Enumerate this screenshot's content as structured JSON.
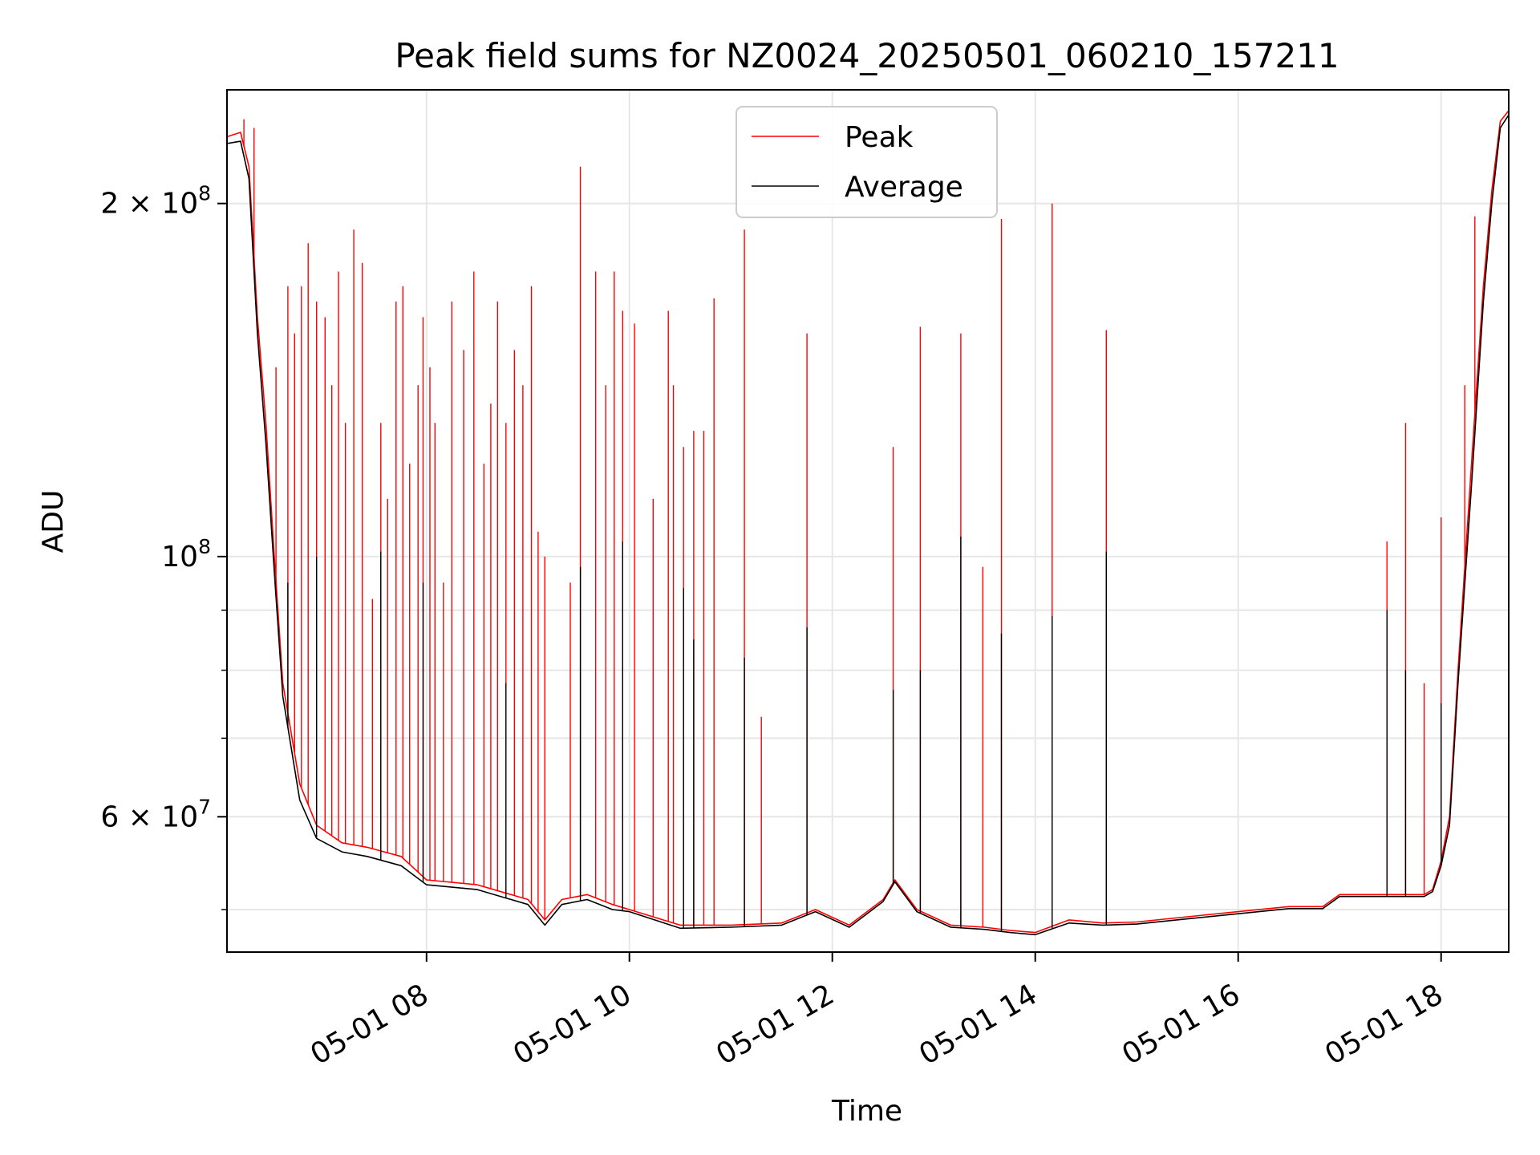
{
  "chart_data": {
    "type": "line",
    "title": "Peak field sums for NZ0024_20250501_060210_157211",
    "xlabel": "Time",
    "ylabel": "ADU",
    "y_scale": "log",
    "grid": true,
    "legend_position": "top-center",
    "xlim": [
      "2025-05-01 06:02",
      "2025-05-01 18:40"
    ],
    "ylim": [
      46000000,
      250000000
    ],
    "x_ticks": [
      {
        "t": "2025-05-01 08:00",
        "label": "05-01 08"
      },
      {
        "t": "2025-05-01 10:00",
        "label": "05-01 10"
      },
      {
        "t": "2025-05-01 12:00",
        "label": "05-01 12"
      },
      {
        "t": "2025-05-01 14:00",
        "label": "05-01 14"
      },
      {
        "t": "2025-05-01 16:00",
        "label": "05-01 16"
      },
      {
        "t": "2025-05-01 18:00",
        "label": "05-01 18"
      }
    ],
    "y_ticks": [
      {
        "value": 200000000,
        "base": "2 × 10",
        "exp": "8"
      },
      {
        "value": 100000000,
        "base": "10",
        "exp": "8"
      },
      {
        "value": 60000000,
        "base": "6 × 10",
        "exp": "7"
      }
    ],
    "y_minor_ticks": [
      50000000,
      70000000,
      80000000,
      90000000
    ],
    "series": [
      {
        "name": "Peak",
        "color": "#ff0000",
        "points": [
          [
            "2025-05-01 06:02",
            228000000
          ],
          [
            "2025-05-01 06:10",
            230000000
          ],
          [
            "2025-05-01 06:15",
            215000000
          ],
          [
            "2025-05-01 06:20",
            160000000
          ],
          [
            "2025-05-01 06:25",
            130000000
          ],
          [
            "2025-05-01 06:30",
            100000000
          ],
          [
            "2025-05-01 06:35",
            78000000
          ],
          [
            "2025-05-01 06:45",
            64000000
          ],
          [
            "2025-05-01 06:55",
            59000000
          ],
          [
            "2025-05-01 07:10",
            57000000
          ],
          [
            "2025-05-01 07:25",
            56500000
          ],
          [
            "2025-05-01 07:45",
            55500000
          ],
          [
            "2025-05-01 08:00",
            53000000
          ],
          [
            "2025-05-01 08:30",
            52500000
          ],
          [
            "2025-05-01 09:00",
            51000000
          ],
          [
            "2025-05-01 09:10",
            49000000
          ],
          [
            "2025-05-01 09:20",
            51000000
          ],
          [
            "2025-05-01 09:35",
            51500000
          ],
          [
            "2025-05-01 09:50",
            50500000
          ],
          [
            "2025-05-01 10:00",
            50000000
          ],
          [
            "2025-05-01 10:30",
            48500000
          ],
          [
            "2025-05-01 11:00",
            48500000
          ],
          [
            "2025-05-01 11:30",
            48700000
          ],
          [
            "2025-05-01 11:50",
            50000000
          ],
          [
            "2025-05-01 12:10",
            48500000
          ],
          [
            "2025-05-01 12:30",
            51000000
          ],
          [
            "2025-05-01 12:37",
            53000000
          ],
          [
            "2025-05-01 12:50",
            50000000
          ],
          [
            "2025-05-01 13:10",
            48500000
          ],
          [
            "2025-05-01 13:30",
            48300000
          ],
          [
            "2025-05-01 13:45",
            48000000
          ],
          [
            "2025-05-01 14:00",
            47800000
          ],
          [
            "2025-05-01 14:20",
            49000000
          ],
          [
            "2025-05-01 14:40",
            48700000
          ],
          [
            "2025-05-01 15:00",
            48800000
          ],
          [
            "2025-05-01 15:30",
            49300000
          ],
          [
            "2025-05-01 16:00",
            49800000
          ],
          [
            "2025-05-01 16:30",
            50300000
          ],
          [
            "2025-05-01 16:50",
            50300000
          ],
          [
            "2025-05-01 17:00",
            51500000
          ],
          [
            "2025-05-01 17:30",
            51500000
          ],
          [
            "2025-05-01 17:50",
            51500000
          ],
          [
            "2025-05-01 17:55",
            52000000
          ],
          [
            "2025-05-01 18:00",
            55000000
          ],
          [
            "2025-05-01 18:05",
            60000000
          ],
          [
            "2025-05-01 18:10",
            80000000
          ],
          [
            "2025-05-01 18:18",
            120000000
          ],
          [
            "2025-05-01 18:25",
            170000000
          ],
          [
            "2025-05-01 18:30",
            205000000
          ],
          [
            "2025-05-01 18:35",
            235000000
          ],
          [
            "2025-05-01 18:40",
            240000000
          ]
        ],
        "spikes": [
          [
            "2025-05-01 06:12",
            236000000
          ],
          [
            "2025-05-01 06:18",
            232000000
          ],
          [
            "2025-05-01 06:31",
            145000000
          ],
          [
            "2025-05-01 06:38",
            170000000
          ],
          [
            "2025-05-01 06:42",
            155000000
          ],
          [
            "2025-05-01 06:46",
            170000000
          ],
          [
            "2025-05-01 06:50",
            185000000
          ],
          [
            "2025-05-01 06:55",
            165000000
          ],
          [
            "2025-05-01 07:00",
            160000000
          ],
          [
            "2025-05-01 07:04",
            140000000
          ],
          [
            "2025-05-01 07:08",
            175000000
          ],
          [
            "2025-05-01 07:12",
            130000000
          ],
          [
            "2025-05-01 07:17",
            190000000
          ],
          [
            "2025-05-01 07:22",
            178000000
          ],
          [
            "2025-05-01 07:28",
            92000000
          ],
          [
            "2025-05-01 07:33",
            130000000
          ],
          [
            "2025-05-01 07:37",
            112000000
          ],
          [
            "2025-05-01 07:42",
            165000000
          ],
          [
            "2025-05-01 07:46",
            170000000
          ],
          [
            "2025-05-01 07:50",
            120000000
          ],
          [
            "2025-05-01 07:55",
            140000000
          ],
          [
            "2025-05-01 07:58",
            160000000
          ],
          [
            "2025-05-01 08:02",
            145000000
          ],
          [
            "2025-05-01 08:05",
            130000000
          ],
          [
            "2025-05-01 08:10",
            95000000
          ],
          [
            "2025-05-01 08:15",
            165000000
          ],
          [
            "2025-05-01 08:22",
            150000000
          ],
          [
            "2025-05-01 08:28",
            175000000
          ],
          [
            "2025-05-01 08:34",
            120000000
          ],
          [
            "2025-05-01 08:38",
            135000000
          ],
          [
            "2025-05-01 08:42",
            165000000
          ],
          [
            "2025-05-01 08:47",
            130000000
          ],
          [
            "2025-05-01 08:52",
            150000000
          ],
          [
            "2025-05-01 08:57",
            140000000
          ],
          [
            "2025-05-01 09:02",
            170000000
          ],
          [
            "2025-05-01 09:06",
            105000000
          ],
          [
            "2025-05-01 09:10",
            100000000
          ],
          [
            "2025-05-01 09:25",
            95000000
          ],
          [
            "2025-05-01 09:31",
            215000000
          ],
          [
            "2025-05-01 09:40",
            175000000
          ],
          [
            "2025-05-01 09:46",
            140000000
          ],
          [
            "2025-05-01 09:51",
            175000000
          ],
          [
            "2025-05-01 09:56",
            162000000
          ],
          [
            "2025-05-01 10:03",
            158000000
          ],
          [
            "2025-05-01 10:14",
            112000000
          ],
          [
            "2025-05-01 10:23",
            162000000
          ],
          [
            "2025-05-01 10:26",
            140000000
          ],
          [
            "2025-05-01 10:32",
            124000000
          ],
          [
            "2025-05-01 10:38",
            128000000
          ],
          [
            "2025-05-01 10:44",
            128000000
          ],
          [
            "2025-05-01 10:50",
            166000000
          ],
          [
            "2025-05-01 11:08",
            190000000
          ],
          [
            "2025-05-01 11:18",
            73000000
          ],
          [
            "2025-05-01 11:45",
            155000000
          ],
          [
            "2025-05-01 12:36",
            124000000
          ],
          [
            "2025-05-01 12:52",
            157000000
          ],
          [
            "2025-05-01 13:16",
            155000000
          ],
          [
            "2025-05-01 13:29",
            98000000
          ],
          [
            "2025-05-01 13:40",
            194000000
          ],
          [
            "2025-05-01 14:10",
            200000000
          ],
          [
            "2025-05-01 14:42",
            156000000
          ],
          [
            "2025-05-01 17:28",
            103000000
          ],
          [
            "2025-05-01 17:39",
            130000000
          ],
          [
            "2025-05-01 17:50",
            78000000
          ],
          [
            "2025-05-01 18:00",
            108000000
          ],
          [
            "2025-05-01 18:14",
            140000000
          ],
          [
            "2025-05-01 18:20",
            195000000
          ]
        ]
      },
      {
        "name": "Average",
        "color": "#000000",
        "points": [
          [
            "2025-05-01 06:02",
            225000000
          ],
          [
            "2025-05-01 06:10",
            226000000
          ],
          [
            "2025-05-01 06:15",
            210000000
          ],
          [
            "2025-05-01 06:20",
            155000000
          ],
          [
            "2025-05-01 06:25",
            125000000
          ],
          [
            "2025-05-01 06:30",
            97000000
          ],
          [
            "2025-05-01 06:35",
            76000000
          ],
          [
            "2025-05-01 06:45",
            62000000
          ],
          [
            "2025-05-01 06:55",
            57500000
          ],
          [
            "2025-05-01 07:10",
            56000000
          ],
          [
            "2025-05-01 07:25",
            55500000
          ],
          [
            "2025-05-01 07:45",
            54500000
          ],
          [
            "2025-05-01 08:00",
            52500000
          ],
          [
            "2025-05-01 08:30",
            52000000
          ],
          [
            "2025-05-01 09:00",
            50500000
          ],
          [
            "2025-05-01 09:10",
            48500000
          ],
          [
            "2025-05-01 09:20",
            50500000
          ],
          [
            "2025-05-01 09:35",
            51000000
          ],
          [
            "2025-05-01 09:50",
            50000000
          ],
          [
            "2025-05-01 10:00",
            49800000
          ],
          [
            "2025-05-01 10:30",
            48200000
          ],
          [
            "2025-05-01 11:00",
            48300000
          ],
          [
            "2025-05-01 11:30",
            48500000
          ],
          [
            "2025-05-01 11:50",
            49800000
          ],
          [
            "2025-05-01 12:10",
            48300000
          ],
          [
            "2025-05-01 12:30",
            50800000
          ],
          [
            "2025-05-01 12:37",
            52800000
          ],
          [
            "2025-05-01 12:50",
            49800000
          ],
          [
            "2025-05-01 13:10",
            48300000
          ],
          [
            "2025-05-01 13:30",
            48100000
          ],
          [
            "2025-05-01 13:45",
            47800000
          ],
          [
            "2025-05-01 14:00",
            47600000
          ],
          [
            "2025-05-01 14:20",
            48700000
          ],
          [
            "2025-05-01 14:40",
            48500000
          ],
          [
            "2025-05-01 15:00",
            48600000
          ],
          [
            "2025-05-01 15:30",
            49100000
          ],
          [
            "2025-05-01 16:00",
            49600000
          ],
          [
            "2025-05-01 16:30",
            50100000
          ],
          [
            "2025-05-01 16:50",
            50100000
          ],
          [
            "2025-05-01 17:00",
            51300000
          ],
          [
            "2025-05-01 17:30",
            51300000
          ],
          [
            "2025-05-01 17:50",
            51300000
          ],
          [
            "2025-05-01 17:55",
            51800000
          ],
          [
            "2025-05-01 18:00",
            54500000
          ],
          [
            "2025-05-01 18:05",
            59000000
          ],
          [
            "2025-05-01 18:10",
            78000000
          ],
          [
            "2025-05-01 18:18",
            115000000
          ],
          [
            "2025-05-01 18:25",
            165000000
          ],
          [
            "2025-05-01 18:30",
            200000000
          ],
          [
            "2025-05-01 18:35",
            232000000
          ],
          [
            "2025-05-01 18:40",
            238000000
          ]
        ],
        "spikes": [
          [
            "2025-05-01 06:38",
            95000000
          ],
          [
            "2025-05-01 06:55",
            100000000
          ],
          [
            "2025-05-01 07:33",
            101000000
          ],
          [
            "2025-05-01 07:58",
            95000000
          ],
          [
            "2025-05-01 08:47",
            78000000
          ],
          [
            "2025-05-01 09:31",
            98000000
          ],
          [
            "2025-05-01 09:56",
            103000000
          ],
          [
            "2025-05-01 10:32",
            94000000
          ],
          [
            "2025-05-01 10:38",
            85000000
          ],
          [
            "2025-05-01 11:08",
            82000000
          ],
          [
            "2025-05-01 11:45",
            87000000
          ],
          [
            "2025-05-01 12:36",
            77000000
          ],
          [
            "2025-05-01 12:52",
            80000000
          ],
          [
            "2025-05-01 13:16",
            104000000
          ],
          [
            "2025-05-01 13:40",
            86000000
          ],
          [
            "2025-05-01 14:10",
            89000000
          ],
          [
            "2025-05-01 14:42",
            101000000
          ],
          [
            "2025-05-01 17:28",
            90000000
          ],
          [
            "2025-05-01 17:39",
            80000000
          ],
          [
            "2025-05-01 18:00",
            75000000
          ]
        ]
      }
    ]
  }
}
